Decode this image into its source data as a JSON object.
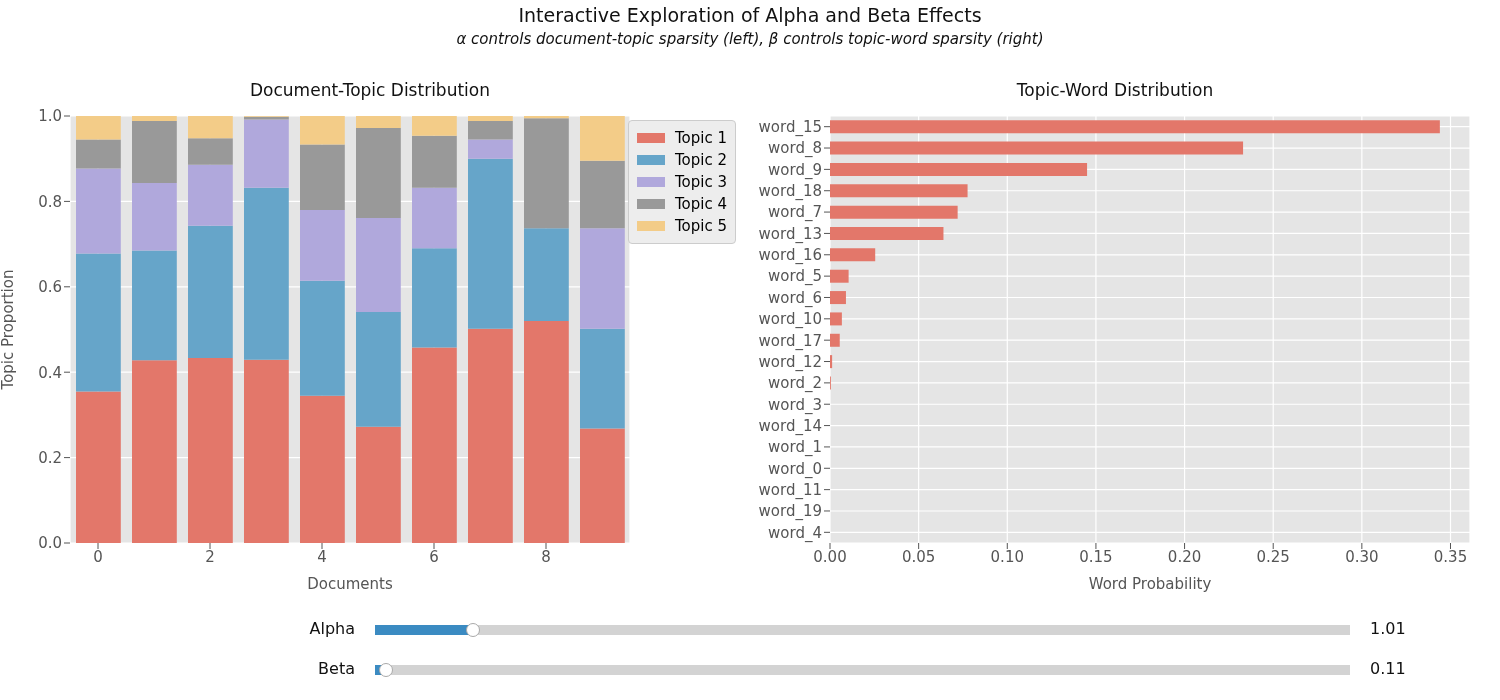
{
  "chart_data": [
    {
      "type": "other",
      "title": "Interactive Exploration of Alpha and Beta Effects",
      "subtitle": "α controls document-topic sparsity (left), β controls topic-word sparsity (right)"
    },
    {
      "type": "bar",
      "title": "Document-Topic Distribution",
      "xlabel": "Documents",
      "ylabel": "Topic Proportion",
      "stacked": true,
      "x": [
        0,
        1,
        2,
        3,
        4,
        5,
        6,
        7,
        8,
        9
      ],
      "series": [
        {
          "name": "Topic 1",
          "color": "#e3776a",
          "values": [
            0.355,
            0.428,
            0.433,
            0.429,
            0.345,
            0.272,
            0.458,
            0.502,
            0.52,
            0.268
          ]
        },
        {
          "name": "Topic 2",
          "color": "#66a5c9",
          "values": [
            0.323,
            0.257,
            0.31,
            0.403,
            0.269,
            0.269,
            0.232,
            0.398,
            0.217,
            0.234
          ]
        },
        {
          "name": "Topic 3",
          "color": "#b0a8dc",
          "values": [
            0.199,
            0.158,
            0.143,
            0.16,
            0.166,
            0.22,
            0.142,
            0.045,
            0.0,
            0.235
          ]
        },
        {
          "name": "Topic 4",
          "color": "#999999",
          "values": [
            0.068,
            0.145,
            0.062,
            0.006,
            0.153,
            0.211,
            0.122,
            0.043,
            0.258,
            0.158
          ]
        },
        {
          "name": "Topic 5",
          "color": "#f3cc88",
          "values": [
            0.055,
            0.012,
            0.052,
            0.002,
            0.067,
            0.028,
            0.046,
            0.012,
            0.005,
            0.105
          ]
        }
      ],
      "xlim": [
        -0.5,
        9.5
      ],
      "xticks": [
        0,
        2,
        4,
        6,
        8
      ],
      "ylim": [
        0,
        1
      ],
      "yticks": [
        {
          "value": 0,
          "label": "0.0"
        },
        {
          "value": 0.2,
          "label": "0.2"
        },
        {
          "value": 0.4,
          "label": "0.4"
        },
        {
          "value": 0.6,
          "label": "0.6"
        },
        {
          "value": 0.8,
          "label": "0.8"
        },
        {
          "value": 1,
          "label": "1.0"
        }
      ],
      "grid": true,
      "legend": "right"
    },
    {
      "type": "bar",
      "title": "Topic-Word Distribution",
      "xlabel": "Word Probability",
      "orientation": "horizontal",
      "categories": [
        "word_15",
        "word_8",
        "word_9",
        "word_18",
        "word_7",
        "word_13",
        "word_16",
        "word_5",
        "word_6",
        "word_10",
        "word_17",
        "word_12",
        "word_2",
        "word_3",
        "word_14",
        "word_1",
        "word_0",
        "word_11",
        "word_19",
        "word_4"
      ],
      "values": [
        0.344,
        0.233,
        0.145,
        0.0776,
        0.072,
        0.064,
        0.0255,
        0.0105,
        0.009,
        0.0067,
        0.0055,
        0.0012,
        0.0005,
        0,
        0,
        0,
        0,
        0,
        0,
        0
      ],
      "color": "#e3776a",
      "xlim": [
        0,
        0.361
      ],
      "xticks": [
        {
          "value": 0,
          "label": "0.00"
        },
        {
          "value": 0.05,
          "label": "0.05"
        },
        {
          "value": 0.1,
          "label": "0.10"
        },
        {
          "value": 0.15,
          "label": "0.15"
        },
        {
          "value": 0.2,
          "label": "0.20"
        },
        {
          "value": 0.25,
          "label": "0.25"
        },
        {
          "value": 0.3,
          "label": "0.30"
        },
        {
          "value": 0.35,
          "label": "0.35"
        }
      ],
      "grid": true
    },
    {
      "type": "other",
      "categories": [
        "Alpha",
        "Beta"
      ],
      "values": [
        1.01,
        0.11
      ],
      "data_labels": true
    }
  ]
}
